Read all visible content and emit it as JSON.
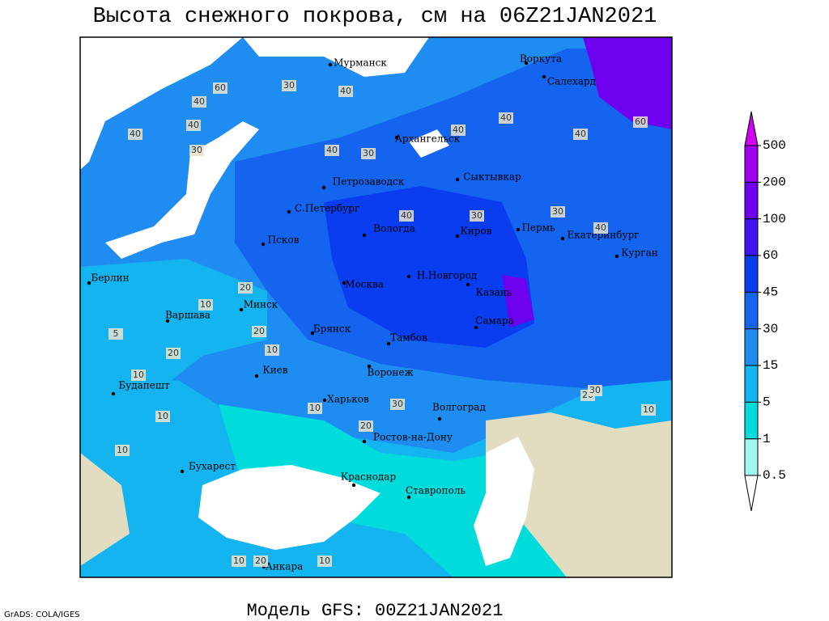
{
  "title": "Высота снежного покрова, см на 06Z21JAN2021",
  "footer": "Модель GFS: 00Z21JAN2021",
  "credit": "GrADS: COLA/IGES",
  "colorbar": {
    "levels": [
      0.5,
      1,
      5,
      15,
      30,
      45,
      60,
      100,
      200,
      500
    ],
    "colors": [
      "#ffffff",
      "#9ef5f2",
      "#00dcdc",
      "#14b4f0",
      "#1e8cf0",
      "#1464f0",
      "#0a3cf0",
      "#3c14f0",
      "#6e00f0",
      "#a000f0",
      "#d200f5"
    ]
  },
  "cities": [
    "Мурманск",
    "Воркута",
    "Салехард",
    "Архангельск",
    "Петрозаводск",
    "Сыктывкар",
    "С.Петербург",
    "Вологда",
    "Киров",
    "Пермь",
    "Екатеринбург",
    "Курган",
    "Псков",
    "Н.Новгород",
    "Берлин",
    "Москва",
    "Казань",
    "Минск",
    "Варшава",
    "Самара",
    "Брянск",
    "Тамбов",
    "Киев",
    "Воронеж",
    "Будапешт",
    "Харьков",
    "Волгоград",
    "Ростов-на-Дону",
    "Бухарест",
    "Краснодар",
    "Ставрополь",
    "Анкара"
  ],
  "contour_labels": [
    60,
    40,
    40,
    30,
    40,
    40,
    30,
    40,
    40,
    40,
    60,
    40,
    30,
    20,
    30,
    30,
    40,
    40,
    20,
    10,
    20,
    10,
    10,
    30,
    20,
    10,
    5,
    10,
    10,
    20,
    30,
    10,
    10,
    20,
    10
  ]
}
